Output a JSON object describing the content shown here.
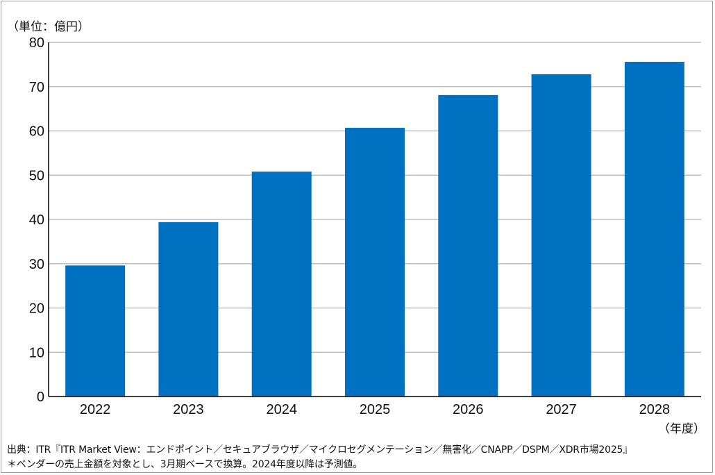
{
  "unit_label": "（単位：億円）",
  "x_unit_label": "（年度）",
  "source_note": "出典：ITR『ITR Market View：エンドポイント／セキュアブラウザ／マイクロセグメンテーション／無害化／CNAPP／DSPM／XDR市場2025』",
  "footnote": "＊ベンダーの売上金額を対象とし、3月期ベースで換算。2024年度以降は予測値。",
  "colors": {
    "bar": "#0070c0",
    "grid": "#bfbfbf",
    "axis": "#000000"
  },
  "chart_data": {
    "type": "bar",
    "categories": [
      "2022",
      "2023",
      "2024",
      "2025",
      "2026",
      "2027",
      "2028"
    ],
    "values": [
      29.6,
      39.4,
      50.8,
      60.7,
      68.1,
      72.8,
      75.6
    ],
    "title": "",
    "xlabel": "（年度）",
    "ylabel": "（単位：億円）",
    "ylim": [
      0,
      80
    ],
    "yticks": [
      0,
      10,
      20,
      30,
      40,
      50,
      60,
      70,
      80
    ],
    "grid": true,
    "legend": "none"
  }
}
